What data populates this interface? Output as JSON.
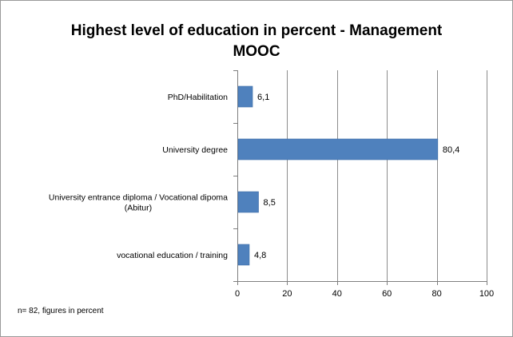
{
  "chart_data": {
    "type": "bar",
    "orientation": "horizontal",
    "title": "Highest level of education in percent - Management MOOC",
    "title_lines": [
      "Highest level of education in percent - Management",
      "MOOC"
    ],
    "categories": [
      "PhD/Habilitation",
      "University degree",
      "University entrance diploma / Vocational dipoma (Abitur)",
      "vocational education / training"
    ],
    "category_label_lines": [
      [
        "PhD/Habilitation"
      ],
      [
        "University degree"
      ],
      [
        "University entrance diploma / Vocational dipoma",
        "(Abitur)"
      ],
      [
        "vocational education / training"
      ]
    ],
    "values": [
      6.1,
      80.4,
      8.5,
      4.8
    ],
    "data_labels": [
      "6,1",
      "80,4",
      "8,5",
      "4,8"
    ],
    "xlim": [
      0,
      100
    ],
    "xticks": [
      0,
      20,
      40,
      60,
      80,
      100
    ],
    "xtick_labels": [
      "0",
      "20",
      "40",
      "60",
      "80",
      "100"
    ],
    "xlabel": "",
    "ylabel": "",
    "grid": "vertical",
    "legend": "none",
    "footnote": "n= 82, figures in percent",
    "colors": {
      "bar": "#4f81bd",
      "bar_edge": "#3f6ea8",
      "grid": "#8c8c8c",
      "axis": "#7f7f7f"
    }
  }
}
